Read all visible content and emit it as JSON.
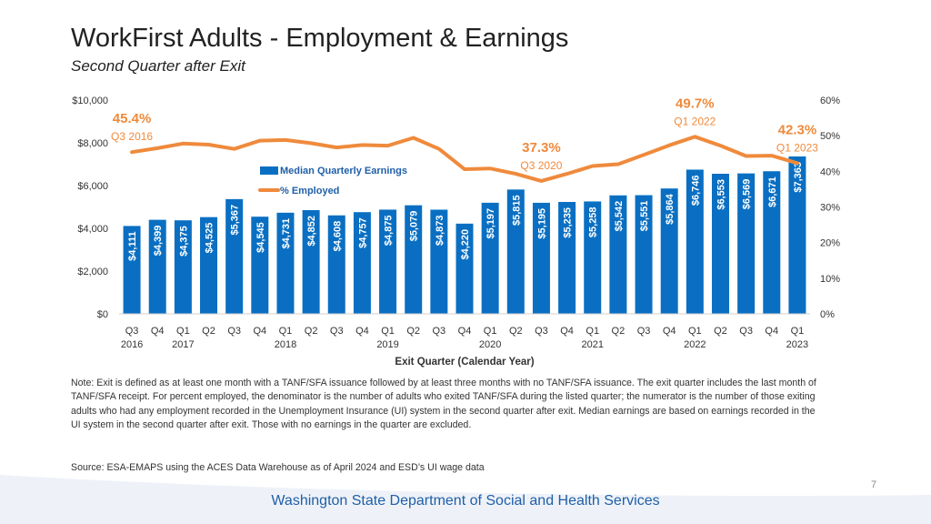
{
  "title": "WorkFirst Adults - Employment & Earnings",
  "subtitle": "Second Quarter after Exit",
  "note": "Note: Exit is defined as at least one month with a TANF/SFA issuance followed by at least three months with no TANF/SFA issuance. The exit quarter includes the last month of TANF/SFA receipt. For percent employed, the denominator is the number of adults who exited TANF/SFA during the listed quarter; the numerator is the number of those exiting adults who had any employment recorded in the Unemployment Insurance (UI) system in the second quarter after exit. Median earnings are based on earnings recorded in the UI system in the second quarter after exit. Those with no earnings in the quarter are excluded.",
  "source": "Source: ESA-EMAPS using the ACES Data Warehouse as of April 2024 and ESD’s UI wage data",
  "page_number": "7",
  "footer": "Washington State Department of Social and Health Services",
  "colors": {
    "bar": "#0a6fc2",
    "line": "#ef8a3c",
    "accent_text": "#ef8a3c",
    "footer": "#1f5fa8"
  },
  "chart_data": {
    "type": "bar+line",
    "xlabel": "Exit Quarter (Calendar Year)",
    "ylabel_left": "",
    "ylabel_right": "",
    "ylim_left": [
      0,
      10000
    ],
    "ylim_right": [
      0,
      60
    ],
    "left_ticks": [
      "$0",
      "$2,000",
      "$4,000",
      "$6,000",
      "$8,000",
      "$10,000"
    ],
    "right_ticks": [
      "0%",
      "10%",
      "20%",
      "30%",
      "40%",
      "50%",
      "60%"
    ],
    "quarter_labels": [
      "Q3",
      "Q4",
      "Q1",
      "Q2",
      "Q3",
      "Q4",
      "Q1",
      "Q2",
      "Q3",
      "Q4",
      "Q1",
      "Q2",
      "Q3",
      "Q4",
      "Q1",
      "Q2",
      "Q3",
      "Q4",
      "Q1",
      "Q2",
      "Q3",
      "Q4",
      "Q1",
      "Q2",
      "Q3",
      "Q4",
      "Q1"
    ],
    "year_labels": [
      {
        "index": 0,
        "label": "2016"
      },
      {
        "index": 2,
        "label": "2017"
      },
      {
        "index": 6,
        "label": "2018"
      },
      {
        "index": 10,
        "label": "2019"
      },
      {
        "index": 14,
        "label": "2020"
      },
      {
        "index": 18,
        "label": "2021"
      },
      {
        "index": 22,
        "label": "2022"
      },
      {
        "index": 26,
        "label": "2023"
      }
    ],
    "series": [
      {
        "name": "Median Quarterly Earnings",
        "kind": "bar",
        "axis": "left",
        "values": [
          4111,
          4399,
          4375,
          4525,
          5367,
          4545,
          4731,
          4852,
          4608,
          4757,
          4875,
          5079,
          4873,
          4220,
          5197,
          5815,
          5195,
          5235,
          5258,
          5542,
          5551,
          5864,
          6746,
          6553,
          6569,
          6671,
          7363
        ],
        "labels": [
          "$4,111",
          "$4,399",
          "$4,375",
          "$4,525",
          "$5,367",
          "$4,545",
          "$4,731",
          "$4,852",
          "$4,608",
          "$4,757",
          "$4,875",
          "$5,079",
          "$4,873",
          "$4,220",
          "$5,197",
          "$5,815",
          "$5,195",
          "$5,235",
          "$5,258",
          "$5,542",
          "$5,551",
          "$5,864",
          "$6,746",
          "$6,553",
          "$6,569",
          "$6,671",
          "$7,363"
        ]
      },
      {
        "name": "% Employed",
        "kind": "line",
        "axis": "right",
        "values": [
          45.4,
          46.5,
          47.8,
          47.5,
          46.3,
          48.6,
          48.8,
          47.9,
          46.7,
          47.4,
          47.2,
          49.4,
          46.3,
          40.6,
          40.8,
          39.3,
          37.3,
          39.3,
          41.5,
          42.0,
          44.6,
          47.3,
          49.7,
          47.2,
          44.3,
          44.4,
          42.3
        ]
      }
    ],
    "callouts": [
      {
        "index": 0,
        "value": "45.4%",
        "label": "Q3 2016"
      },
      {
        "index": 16,
        "value": "37.3%",
        "label": "Q3 2020"
      },
      {
        "index": 22,
        "value": "49.7%",
        "label": "Q1 2022"
      },
      {
        "index": 26,
        "value": "42.3%",
        "label": "Q1 2023"
      }
    ]
  }
}
